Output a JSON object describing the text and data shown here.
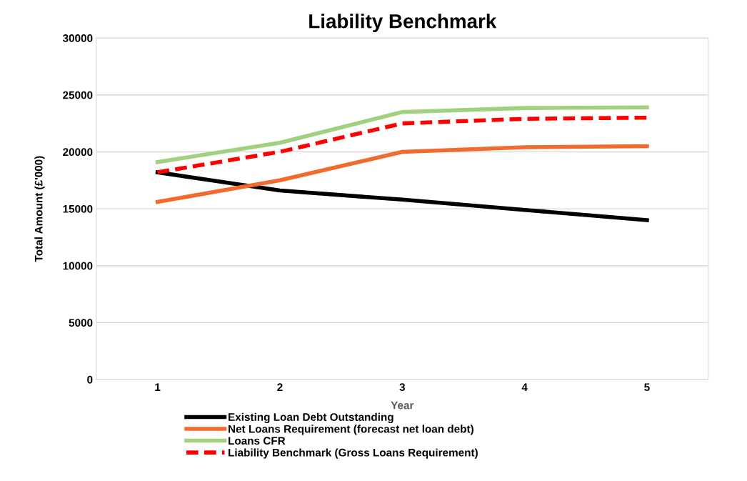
{
  "chart_data": {
    "type": "line",
    "title": "Liability Benchmark",
    "xlabel": "Year",
    "ylabel": "Total Amount (£'000)",
    "categories": [
      "1",
      "2",
      "3",
      "4",
      "5"
    ],
    "series": [
      {
        "name": "Existing Loan Debt Outstanding",
        "color": "#000000",
        "values": [
          18200,
          16600,
          15800,
          14900,
          14000
        ]
      },
      {
        "name": "Net Loans Requirement (forecast net loan debt)",
        "color": "#f26b2e",
        "values": [
          15600,
          17500,
          20000,
          20400,
          20500
        ]
      },
      {
        "name": "Loans CFR",
        "color": "#a0d080",
        "values": [
          19100,
          20800,
          23500,
          23850,
          23900
        ]
      },
      {
        "name": "Liability Benchmark (Gross Loans Requirement)",
        "color": "#ff0000",
        "values": [
          18200,
          20000,
          22500,
          22900,
          23000
        ],
        "line_style": "dashed"
      }
    ],
    "ylim": [
      0,
      30000
    ],
    "yticks": [
      0,
      5000,
      10000,
      15000,
      20000,
      25000,
      30000
    ],
    "grid": "y",
    "legend": "bottom",
    "marker": "none"
  }
}
